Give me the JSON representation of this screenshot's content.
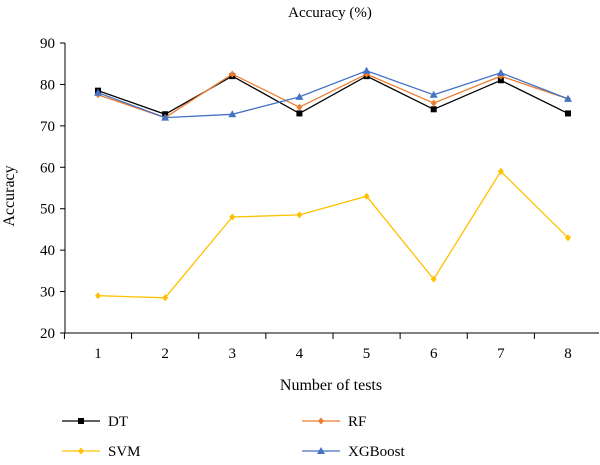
{
  "chart_data": {
    "type": "line",
    "title": "Accuracy (%)",
    "xlabel": "Number of tests",
    "ylabel": "Accuracy",
    "x": [
      1,
      2,
      3,
      4,
      5,
      6,
      7,
      8
    ],
    "ylim": [
      20,
      90
    ],
    "yticks": [
      20,
      30,
      40,
      50,
      60,
      70,
      80,
      90
    ],
    "grid": false,
    "legend_position": "bottom",
    "series": [
      {
        "name": "DT",
        "color": "#000000",
        "marker": "square",
        "values": [
          78.5,
          72.8,
          82.0,
          73.0,
          82.0,
          74.0,
          81.0,
          73.0
        ]
      },
      {
        "name": "RF",
        "color": "#ED7D31",
        "marker": "diamond",
        "values": [
          77.5,
          72.0,
          82.5,
          74.5,
          82.5,
          75.5,
          82.0,
          76.5
        ]
      },
      {
        "name": "SVM",
        "color": "#FFC000",
        "marker": "diamond",
        "values": [
          29.0,
          28.5,
          48.0,
          48.5,
          53.0,
          33.0,
          59.0,
          43.0
        ]
      },
      {
        "name": "XGBoost",
        "color": "#4472C4",
        "marker": "triangle",
        "values": [
          78.0,
          72.0,
          72.8,
          77.0,
          83.3,
          77.5,
          82.8,
          76.5
        ]
      }
    ]
  }
}
